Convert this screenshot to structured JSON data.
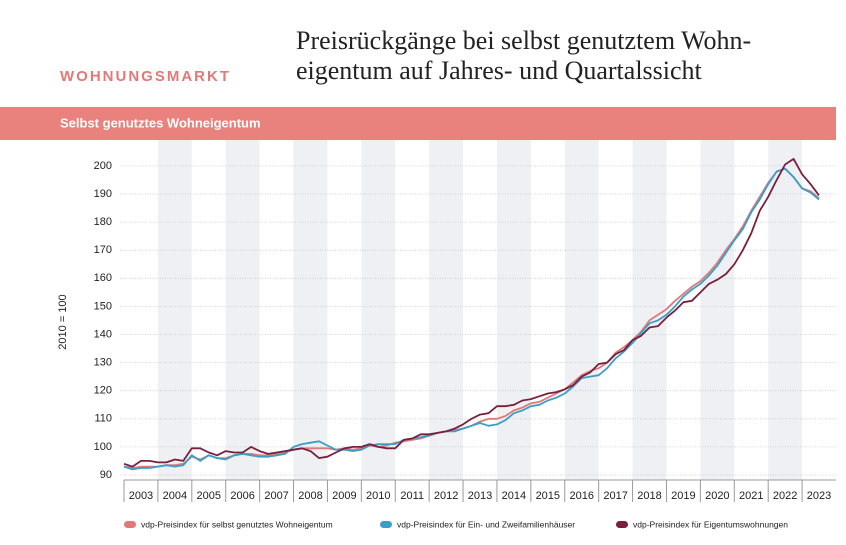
{
  "chart_data": {
    "type": "line",
    "kicker": "WOHNUNGSMARKT",
    "title": [
      "Preisrückgänge bei selbst genutztem Wohn-",
      "eigentum auf Jahres- und Quartalssicht"
    ],
    "subtitle": "Selbst genutztes Wohneigentum",
    "ylabel": "2010 = 100",
    "x": [
      2003,
      2003.25,
      2003.5,
      2003.75,
      2004,
      2004.25,
      2004.5,
      2004.75,
      2005,
      2005.25,
      2005.5,
      2005.75,
      2006,
      2006.25,
      2006.5,
      2006.75,
      2007,
      2007.25,
      2007.5,
      2007.75,
      2008,
      2008.25,
      2008.5,
      2008.75,
      2009,
      2009.25,
      2009.5,
      2009.75,
      2010,
      2010.25,
      2010.5,
      2010.75,
      2011,
      2011.25,
      2011.5,
      2011.75,
      2012,
      2012.25,
      2012.5,
      2012.75,
      2013,
      2013.25,
      2013.5,
      2013.75,
      2014,
      2014.25,
      2014.5,
      2014.75,
      2015,
      2015.25,
      2015.5,
      2015.75,
      2016,
      2016.25,
      2016.5,
      2016.75,
      2017,
      2017.25,
      2017.5,
      2017.75,
      2018,
      2018.25,
      2018.5,
      2018.75,
      2019,
      2019.25,
      2019.5,
      2019.75,
      2020,
      2020.25,
      2020.5,
      2020.75,
      2021,
      2021.25,
      2021.5,
      2021.75,
      2022,
      2022.25,
      2022.5,
      2022.75,
      2023,
      2023.25,
      2023.5
    ],
    "series": [
      {
        "name": "vdp-Preisindex für selbst genutztes Wohneigentum",
        "color": "#e07a78",
        "values": [
          93,
          92.5,
          93,
          93,
          93,
          93.5,
          93.5,
          94,
          96.5,
          95.5,
          97,
          96,
          96,
          97,
          97.5,
          97.5,
          97,
          97,
          97.5,
          98,
          99,
          99.5,
          99.5,
          99.5,
          99.5,
          99,
          99.5,
          99,
          99.5,
          100.5,
          100,
          100.5,
          101.5,
          102,
          102.5,
          103,
          104,
          105,
          105.5,
          106,
          106.5,
          107.5,
          109,
          110,
          110,
          111,
          113,
          114,
          115.5,
          116,
          117.5,
          119,
          120.5,
          123,
          125.5,
          127,
          128,
          130,
          133.5,
          135.5,
          138,
          141,
          145,
          147,
          149,
          152,
          154.5,
          157,
          159,
          162,
          165.5,
          170,
          174,
          178.5,
          184,
          189,
          194,
          198,
          199,
          196,
          192,
          191,
          188.5
        ]
      },
      {
        "name": "vdp-Preisindex für Ein- und Zweifamilienhäuser",
        "color": "#3a9fc8",
        "values": [
          93,
          92,
          92.5,
          92.5,
          93,
          93.5,
          93,
          93.5,
          97,
          95,
          97,
          96,
          95.5,
          97,
          97.5,
          97,
          96.5,
          96.5,
          97,
          97.5,
          100,
          101,
          101.5,
          102,
          100.5,
          99,
          99,
          98.5,
          99,
          100.5,
          101,
          101,
          101,
          102.5,
          103,
          103.5,
          104,
          105,
          105.5,
          105.5,
          106.5,
          107.5,
          108.5,
          107.5,
          108,
          109.5,
          112,
          113,
          114.5,
          115,
          116.5,
          117.5,
          119,
          121.5,
          124.5,
          125,
          125.5,
          128,
          131.5,
          134,
          137,
          140.5,
          144,
          145,
          147,
          150,
          153.5,
          156,
          158,
          161,
          164.5,
          169,
          173.5,
          177.5,
          183.5,
          188,
          193.5,
          198,
          199,
          196,
          192,
          190.5,
          188
        ]
      },
      {
        "name": "vdp-Preisindex für Eigentumswohnungen",
        "color": "#7a1f3d",
        "values": [
          94,
          93,
          95,
          95,
          94.5,
          94.5,
          95.5,
          95,
          99.5,
          99.5,
          98,
          97,
          98.5,
          98,
          98,
          100,
          98.5,
          97.5,
          98,
          98.5,
          99,
          99.5,
          98.5,
          96,
          96.5,
          98,
          99.5,
          100,
          100,
          101,
          100,
          99.5,
          99.5,
          102.5,
          103,
          104.5,
          104.5,
          105,
          105.5,
          106.5,
          108,
          110,
          111.5,
          112,
          114.5,
          114.5,
          115,
          116.5,
          117,
          118,
          119,
          119.5,
          120.5,
          122,
          125,
          126.5,
          129.5,
          130,
          133,
          134.5,
          138,
          139.5,
          142.5,
          143,
          146,
          148.5,
          151.5,
          152,
          155,
          158,
          159.5,
          161.5,
          165,
          170,
          176,
          184,
          189,
          195,
          200.5,
          202.5,
          197,
          193.5,
          189.5
        ]
      }
    ],
    "xlim": [
      2003,
      2024
    ],
    "xticks": [
      2003,
      2004,
      2005,
      2006,
      2007,
      2008,
      2009,
      2010,
      2011,
      2012,
      2013,
      2014,
      2015,
      2016,
      2017,
      2018,
      2019,
      2020,
      2021,
      2022,
      2023
    ],
    "ylim": [
      90,
      203
    ],
    "yticks": [
      90,
      100,
      110,
      120,
      130,
      140,
      150,
      160,
      170,
      180,
      190,
      200
    ],
    "grid": true,
    "legend": "bottom"
  }
}
